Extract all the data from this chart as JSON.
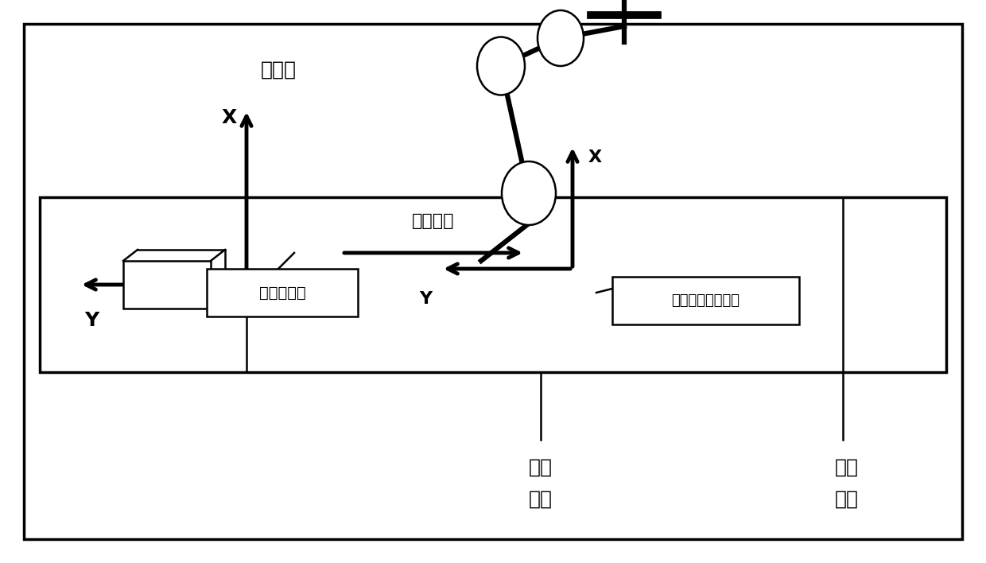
{
  "bg_color": "#ffffff",
  "label_guangxian": "激光线",
  "label_chuandong": "传动方向",
  "label_xiangji": "相机坐标系",
  "label_jiqiren": "机器人用户坐标系",
  "label_kaishi_1": "开始",
  "label_kaishi_2": "噴涂",
  "label_jieshu_1": "噴涂",
  "label_jieshu_2": "结束",
  "label_X": "X",
  "label_Y": "Y"
}
